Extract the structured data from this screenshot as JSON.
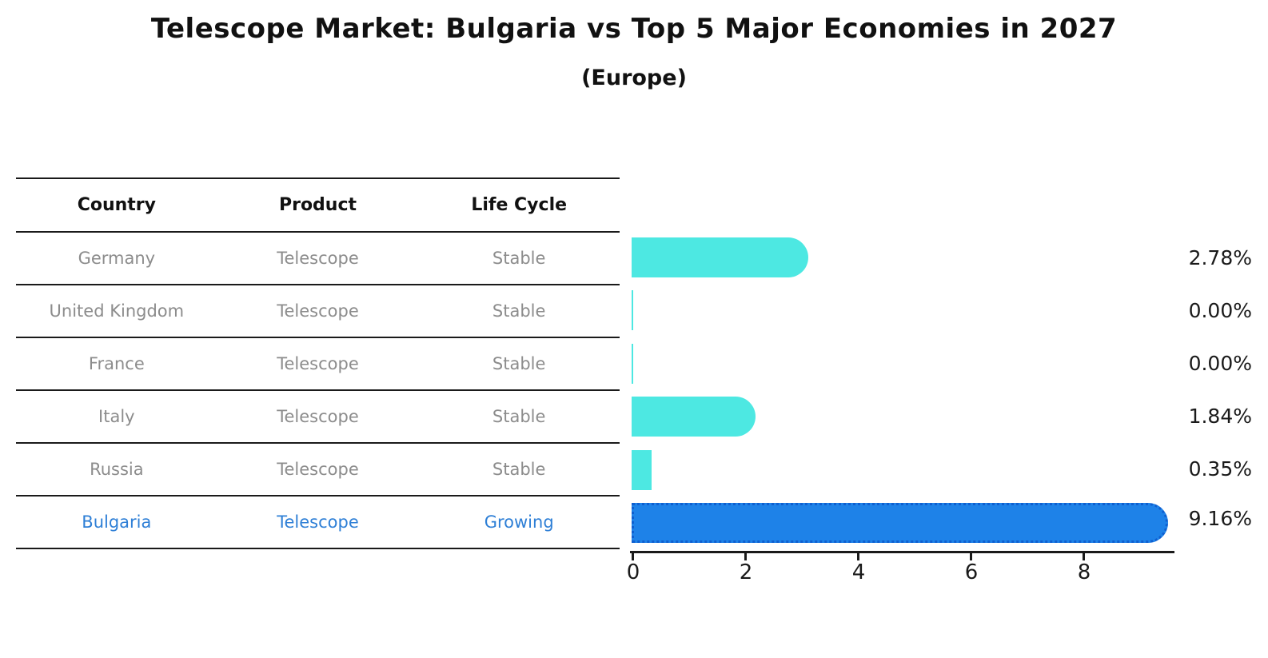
{
  "title": "Telescope Market: Bulgaria vs Top 5 Major Economies in 2027",
  "subtitle": "(Europe)",
  "table": {
    "headers": {
      "country": "Country",
      "product": "Product",
      "life_cycle": "Life Cycle"
    },
    "rows": [
      {
        "country": "Germany",
        "product": "Telescope",
        "life_cycle": "Stable"
      },
      {
        "country": "United Kingdom",
        "product": "Telescope",
        "life_cycle": "Stable"
      },
      {
        "country": "France",
        "product": "Telescope",
        "life_cycle": "Stable"
      },
      {
        "country": "Italy",
        "product": "Telescope",
        "life_cycle": "Stable"
      },
      {
        "country": "Russia",
        "product": "Telescope",
        "life_cycle": "Stable"
      },
      {
        "country": "Bulgaria",
        "product": "Telescope",
        "life_cycle": "Growing"
      }
    ]
  },
  "chart_data": {
    "type": "bar",
    "orientation": "horizontal",
    "title": "Telescope Market: Bulgaria vs Top 5 Major Economies in 2027",
    "subtitle": "(Europe)",
    "categories": [
      "Germany",
      "United Kingdom",
      "France",
      "Italy",
      "Russia",
      "Bulgaria"
    ],
    "values": [
      2.78,
      0.0,
      0.0,
      1.84,
      0.35,
      9.16
    ],
    "value_labels": [
      "2.78%",
      "0.00%",
      "0.00%",
      "1.84%",
      "0.35%",
      "9.16%"
    ],
    "x_ticks": [
      "0",
      "2",
      "4",
      "6",
      "8"
    ],
    "xlim": [
      0,
      9.6
    ],
    "grid": false,
    "legend": false,
    "bar_color": "#4de8e2",
    "highlight_bar_color": "#1e82e8",
    "highlight_index": 5,
    "highlight_category": "Bulgaria"
  },
  "colors": {
    "accent_cyan": "#4de8e2",
    "accent_blue": "#1e82e8",
    "highlight_text": "#2e7fd6",
    "table_text_gray": "#8c8c8c",
    "heading_text": "#111111"
  }
}
